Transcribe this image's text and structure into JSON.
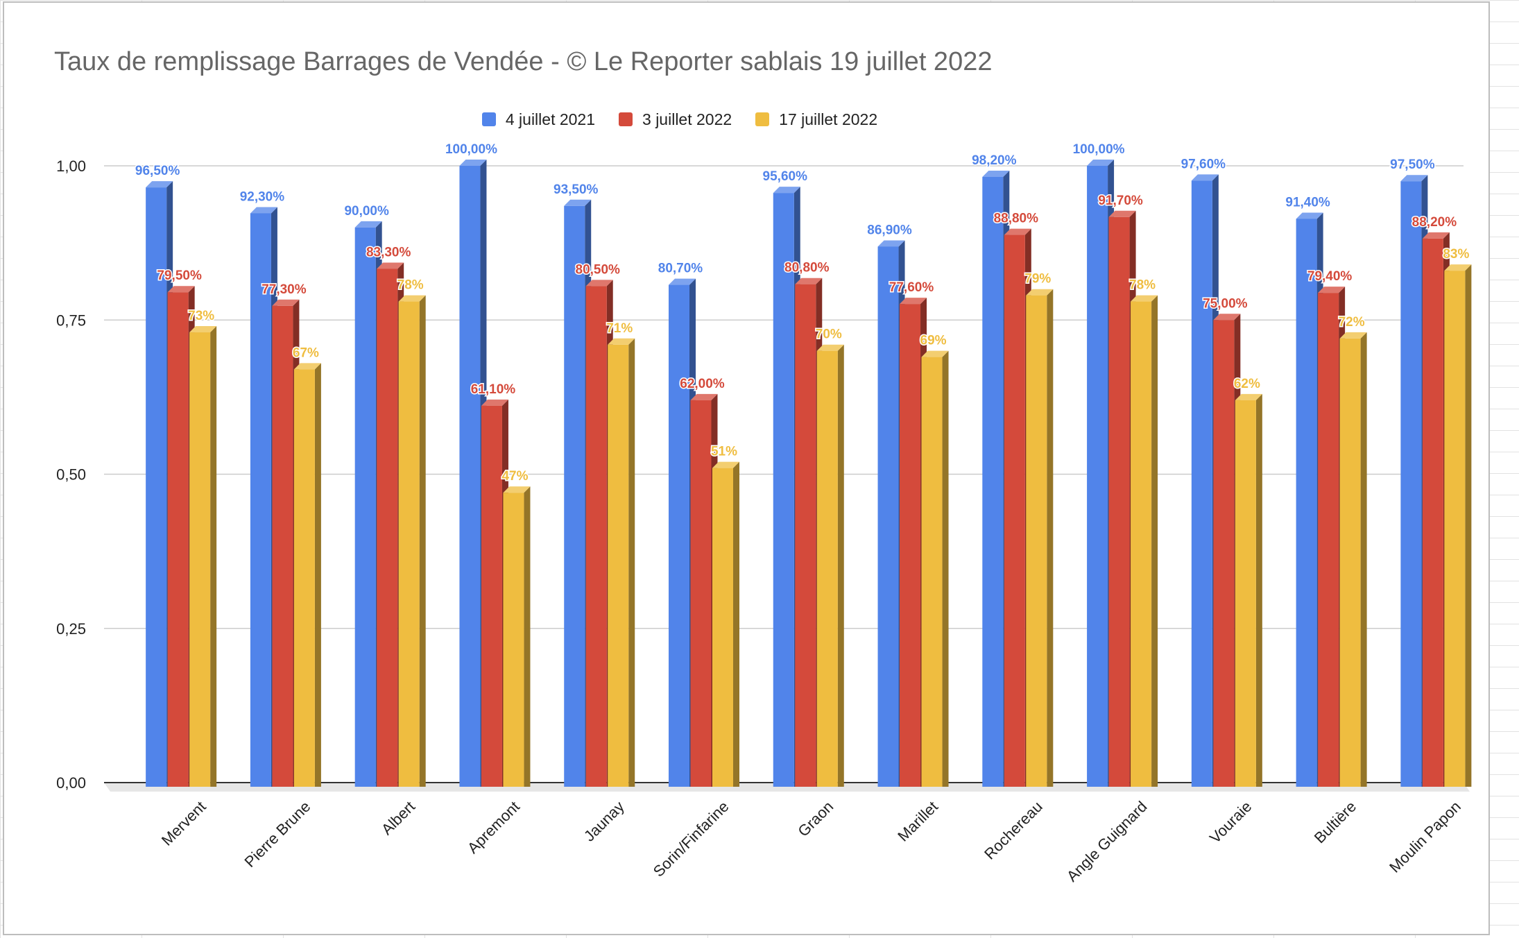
{
  "chart_data": {
    "type": "bar",
    "title": "Taux de remplissage Barrages de Vendée - © Le Reporter sablais 19 juillet 2022",
    "categories": [
      "Mervent",
      "Pierre Brune",
      "Albert",
      "Apremont",
      "Jaunay",
      "Sorin/Finfarine",
      "Graon",
      "Marillet",
      "Rochereau",
      "Angle Guignard",
      "Vouraie",
      "Bultière",
      "Moulin Papon"
    ],
    "series": [
      {
        "name": "4 juillet 2021",
        "color": "#5184ea",
        "values": [
          0.965,
          0.923,
          0.9,
          1.0,
          0.935,
          0.807,
          0.956,
          0.869,
          0.982,
          1.0,
          0.976,
          0.914,
          0.975
        ],
        "labels": [
          "96,50%",
          "92,30%",
          "90,00%",
          "100,00%",
          "93,50%",
          "80,70%",
          "95,60%",
          "86,90%",
          "98,20%",
          "100,00%",
          "97,60%",
          "91,40%",
          "97,50%"
        ]
      },
      {
        "name": "3 juillet 2022",
        "color": "#d44a3b",
        "values": [
          0.795,
          0.773,
          0.833,
          0.611,
          0.805,
          0.62,
          0.808,
          0.776,
          0.888,
          0.917,
          0.75,
          0.794,
          0.882
        ],
        "labels": [
          "79,50%",
          "77,30%",
          "83,30%",
          "61,10%",
          "80,50%",
          "62,00%",
          "80,80%",
          "77,60%",
          "88,80%",
          "91,70%",
          "75,00%",
          "79,40%",
          "88,20%"
        ]
      },
      {
        "name": "17 juillet 2022",
        "color": "#efbd40",
        "values": [
          0.73,
          0.67,
          0.78,
          0.47,
          0.71,
          0.51,
          0.7,
          0.69,
          0.79,
          0.78,
          0.62,
          0.72,
          0.83
        ],
        "labels": [
          "73%",
          "67%",
          "78%",
          "47%",
          "71%",
          "51%",
          "70%",
          "69%",
          "79%",
          "78%",
          "62%",
          "72%",
          "83%"
        ]
      }
    ],
    "yticks": [
      "0,00",
      "0,25",
      "0,50",
      "0,75",
      "1,00"
    ],
    "ytick_values": [
      0,
      0.25,
      0.5,
      0.75,
      1.0
    ],
    "ylim": [
      0,
      1.0
    ],
    "xlabel": "",
    "ylabel": "",
    "grid": true,
    "legend_position": "top-center",
    "style": "3d-bar"
  }
}
